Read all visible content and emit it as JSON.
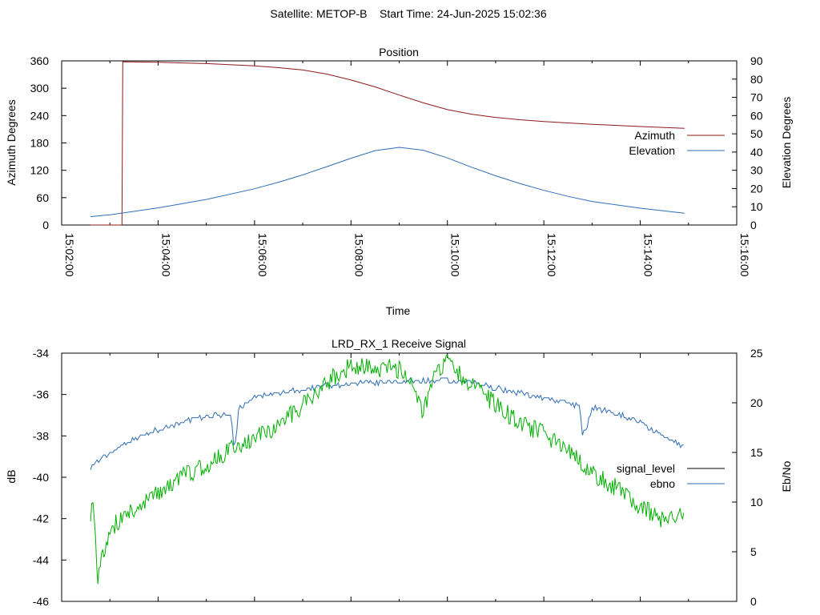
{
  "header": {
    "text": "Satellite: METOP-B    Start Time: 24-Jun-2025 15:02:36"
  },
  "colors": {
    "azimuth": "#8b1a1a",
    "elevation": "#2f6db5",
    "signal_level": "#000000",
    "ebno_legend": "#2f6db5",
    "green_trace": "#00b000",
    "blue_trace": "#2f6db5"
  },
  "chart_data": [
    {
      "type": "line",
      "title": "Position",
      "xlabel": "Time",
      "ylabel": "Azimuth Degrees",
      "y2label": "Elevation Degrees",
      "xlim": [
        "15:02:00",
        "15:16:00"
      ],
      "x_ticks": [
        "15:02:00",
        "15:04:00",
        "15:06:00",
        "15:08:00",
        "15:10:00",
        "15:12:00",
        "15:14:00",
        "15:16:00"
      ],
      "ylim": [
        0,
        360
      ],
      "y_ticks": [
        "0",
        "60",
        "120",
        "180",
        "240",
        "300",
        "360"
      ],
      "y2lim": [
        0,
        90
      ],
      "y2_ticks": [
        "0",
        "10",
        "20",
        "30",
        "40",
        "50",
        "60",
        "70",
        "80",
        "90"
      ],
      "legend_position": "right",
      "series": [
        {
          "name": "Azimuth",
          "axis": "left",
          "x": [
            "15:02:36",
            "15:03:15",
            "15:03:16",
            "15:04:00",
            "15:05:00",
            "15:06:00",
            "15:06:30",
            "15:07:00",
            "15:07:30",
            "15:08:00",
            "15:08:30",
            "15:09:00",
            "15:09:30",
            "15:10:00",
            "15:10:30",
            "15:11:00",
            "15:11:30",
            "15:12:00",
            "15:13:00",
            "15:14:00",
            "15:14:55"
          ],
          "values": [
            0,
            0,
            358,
            357,
            354,
            349,
            345,
            340,
            331,
            318,
            303,
            285,
            268,
            253,
            243,
            236,
            231,
            227,
            221,
            216,
            212
          ]
        },
        {
          "name": "Elevation",
          "axis": "right",
          "x": [
            "15:02:36",
            "15:03:00",
            "15:04:00",
            "15:05:00",
            "15:06:00",
            "15:06:30",
            "15:07:00",
            "15:07:30",
            "15:08:00",
            "15:08:30",
            "15:09:00",
            "15:09:30",
            "15:10:00",
            "15:10:30",
            "15:11:00",
            "15:11:30",
            "15:12:00",
            "15:12:30",
            "15:13:00",
            "15:14:00",
            "15:14:55"
          ],
          "values": [
            4.6,
            5.6,
            9.4,
            14.0,
            19.9,
            23.5,
            27.5,
            32.0,
            36.6,
            40.8,
            42.6,
            41.0,
            36.8,
            31.7,
            27.0,
            22.8,
            19.0,
            15.7,
            12.9,
            9.2,
            6.5
          ]
        }
      ]
    },
    {
      "type": "line",
      "title": "LRD_RX_1 Receive Signal",
      "ylabel": "dB",
      "y2label": "Eb/No",
      "ylim": [
        -46,
        -34
      ],
      "y_ticks": [
        "-46",
        "-44",
        "-42",
        "-40",
        "-38",
        "-36",
        "-34"
      ],
      "y2lim": [
        0,
        25
      ],
      "y2_ticks": [
        "0",
        "5",
        "10",
        "15",
        "20",
        "25"
      ],
      "legend_position": "right",
      "legend": [
        "signal_level",
        "ebno"
      ],
      "series": [
        {
          "style": "green",
          "axis": "left",
          "x": [
            "15:02:36",
            "15:02:40",
            "15:02:45",
            "15:03:00",
            "15:03:15",
            "15:03:30",
            "15:04:00",
            "15:04:30",
            "15:05:00",
            "15:05:30",
            "15:06:00",
            "15:06:30",
            "15:07:00",
            "15:07:30",
            "15:08:00",
            "15:08:30",
            "15:09:00",
            "15:09:15",
            "15:09:30",
            "15:09:45",
            "15:10:00",
            "15:10:30",
            "15:11:00",
            "15:11:30",
            "15:12:00",
            "15:12:30",
            "15:13:00",
            "15:13:30",
            "15:14:00",
            "15:14:30",
            "15:14:55"
          ],
          "values": [
            -41.7,
            -41.5,
            -44.8,
            -42.5,
            -42.0,
            -41.5,
            -40.7,
            -39.9,
            -39.5,
            -38.6,
            -38.1,
            -37.5,
            -36.5,
            -35.4,
            -34.6,
            -34.7,
            -34.8,
            -35.2,
            -36.9,
            -35.0,
            -34.5,
            -35.5,
            -36.5,
            -37.4,
            -37.9,
            -38.7,
            -39.8,
            -40.5,
            -41.4,
            -42.1,
            -41.6
          ]
        },
        {
          "style": "blue",
          "axis": "right",
          "x": [
            "15:02:36",
            "15:03:00",
            "15:03:30",
            "15:04:00",
            "15:04:30",
            "15:05:00",
            "15:05:30",
            "15:05:34",
            "15:05:37",
            "15:05:40",
            "15:06:00",
            "15:06:30",
            "15:07:00",
            "15:07:30",
            "15:08:00",
            "15:08:30",
            "15:09:00",
            "15:09:30",
            "15:10:00",
            "15:10:30",
            "15:11:00",
            "15:11:30",
            "15:12:00",
            "15:12:30",
            "15:12:45",
            "15:12:48",
            "15:12:52",
            "15:13:00",
            "15:13:30",
            "15:14:00",
            "15:14:30",
            "15:14:55"
          ],
          "values": [
            13.6,
            15.0,
            16.4,
            17.3,
            18.1,
            18.6,
            18.9,
            16.0,
            16.0,
            19.4,
            20.6,
            20.9,
            21.3,
            21.8,
            21.9,
            22.0,
            22.2,
            22.2,
            22.2,
            22.0,
            21.5,
            21.0,
            20.5,
            20.0,
            19.7,
            17.0,
            17.0,
            19.5,
            19.0,
            18.0,
            16.5,
            15.5
          ]
        }
      ]
    }
  ]
}
